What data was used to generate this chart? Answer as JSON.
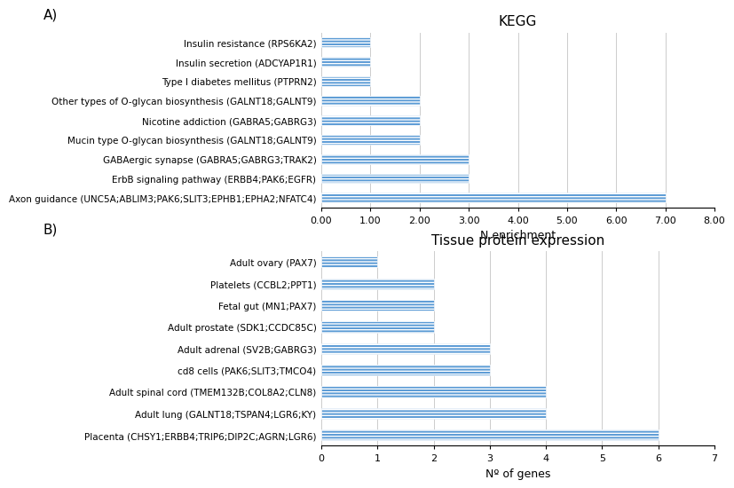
{
  "kegg_labels": [
    "Axon guidance (UNC5A;ABLIM3;PAK6;SLIT3;EPHB1;EPHA2;NFATC4)",
    "ErbB signaling pathway (ERBB4;PAK6;EGFR)",
    "GABAergic synapse (GABRA5;GABRG3;TRAK2)",
    "Mucin type O-glycan biosynthesis (GALNT18;GALNT9)",
    "Nicotine addiction (GABRA5;GABRG3)",
    "Other types of O-glycan biosynthesis (GALNT18;GALNT9)",
    "Type I diabetes mellitus (PTPRN2)",
    "Insulin secretion (ADCYAP1R1)",
    "Insulin resistance (RPS6KA2)"
  ],
  "kegg_values": [
    7.0,
    3.0,
    3.0,
    2.0,
    2.0,
    2.0,
    1.0,
    1.0,
    1.0
  ],
  "kegg_title": "KEGG",
  "kegg_xlabel": "N enrichment",
  "kegg_xlim": [
    0,
    8.0
  ],
  "kegg_xticks": [
    0.0,
    1.0,
    2.0,
    3.0,
    4.0,
    5.0,
    6.0,
    7.0,
    8.0
  ],
  "kegg_xtick_labels": [
    "0.00",
    "1.00",
    "2.00",
    "3.00",
    "4.00",
    "5.00",
    "6.00",
    "7.00",
    "8.00"
  ],
  "tissue_labels": [
    "Placenta (CHSY1;ERBB4;TRIP6;DIP2C;AGRN;LGR6)",
    "Adult lung (GALNT18;TSPAN4;LGR6;KY)",
    "Adult spinal cord (TMEM132B;COL8A2;CLN8)",
    "cd8 cells (PAK6;SLIT3;TMCO4)",
    "Adult adrenal (SV2B;GABRG3)",
    "Adult prostate (SDK1;CCDC85C)",
    "Fetal gut (MN1;PAX7)",
    "Platelets (CCBL2;PPT1)",
    "Adult ovary (PAX7)"
  ],
  "tissue_values": [
    6,
    4,
    4,
    3,
    3,
    2,
    2,
    2,
    1
  ],
  "tissue_title": "Tissue protein expression",
  "tissue_xlabel": "Nº of genes",
  "tissue_xlim": [
    0,
    7
  ],
  "tissue_xticks": [
    0,
    1,
    2,
    3,
    4,
    5,
    6,
    7
  ],
  "tissue_xtick_labels": [
    "0",
    "1",
    "2",
    "3",
    "4",
    "5",
    "6",
    "7"
  ],
  "bar_color": "#5B9BD5",
  "bar_hatch": "-----",
  "hatch_color": "white",
  "label_a": "A)",
  "label_b": "B)",
  "title_fontsize": 11,
  "label_fontsize": 9,
  "tick_fontsize": 8,
  "ytick_fontsize": 7.5,
  "bar_height": 0.5
}
